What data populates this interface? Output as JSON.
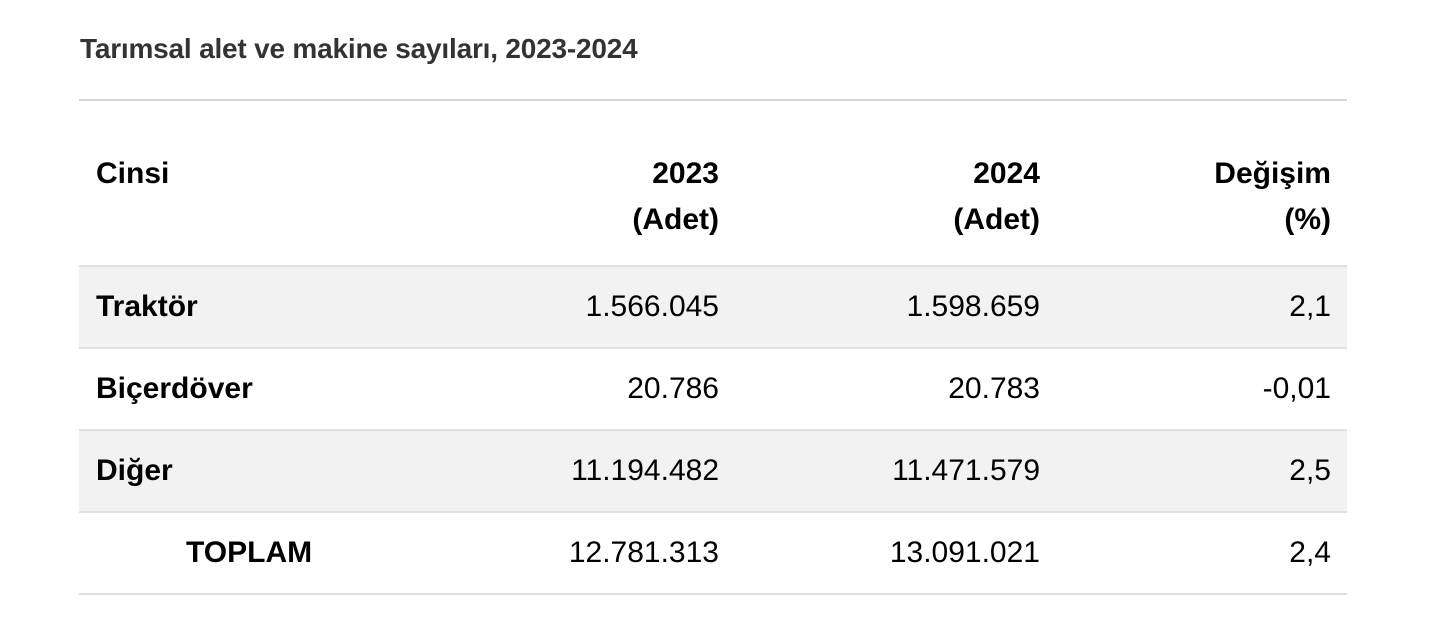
{
  "title": "Tarımsal alet ve makine sayıları, 2023-2024",
  "colors": {
    "title": "#333333",
    "rule": "#d7d7d7",
    "row_shade": "#f2f2f2",
    "row_border": "#e0e0e0"
  },
  "table": {
    "headers": [
      {
        "line1": "Cinsi",
        "line2": ""
      },
      {
        "line1": "2023",
        "line2": "(Adet)"
      },
      {
        "line1": "2024",
        "line2": "(Adet)"
      },
      {
        "line1": "Değişim",
        "line2": "(%)"
      }
    ],
    "rows": [
      {
        "name": "Traktör",
        "v2023": "1.566.045",
        "v2024": "1.598.659",
        "change": "2,1"
      },
      {
        "name": "Biçerdöver",
        "v2023": "20.786",
        "v2024": "20.783",
        "change": "-0,01"
      },
      {
        "name": "Diğer",
        "v2023": "11.194.482",
        "v2024": "11.471.579",
        "change": "2,5"
      },
      {
        "name": "TOPLAM",
        "v2023": "12.781.313",
        "v2024": "13.091.021",
        "change": "2,4"
      }
    ]
  }
}
